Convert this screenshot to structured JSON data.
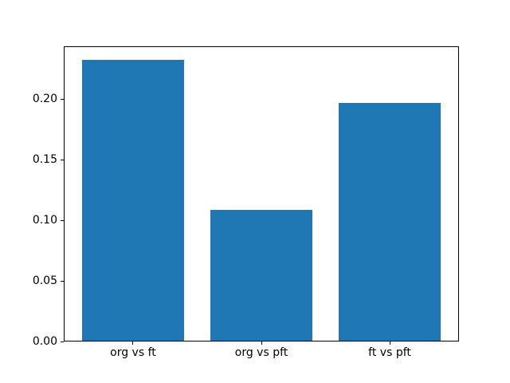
{
  "figure": {
    "background": "#ffffff",
    "frame_color": "#000000"
  },
  "chart_data": {
    "type": "bar",
    "title": "",
    "xlabel": "",
    "ylabel": "",
    "categories": [
      "org vs ft",
      "org vs pft",
      "ft vs pft"
    ],
    "values": [
      0.232,
      0.108,
      0.196
    ],
    "bar_color": "#1f77b4",
    "bar_width": 0.8,
    "xlim": [
      -0.54,
      2.54
    ],
    "ylim": [
      0,
      0.2436
    ],
    "yticks": [
      0.0,
      0.05,
      0.1,
      0.15,
      0.2
    ],
    "ytick_labels": [
      "0.00",
      "0.05",
      "0.10",
      "0.15",
      "0.20"
    ],
    "grid": false,
    "legend": null
  }
}
